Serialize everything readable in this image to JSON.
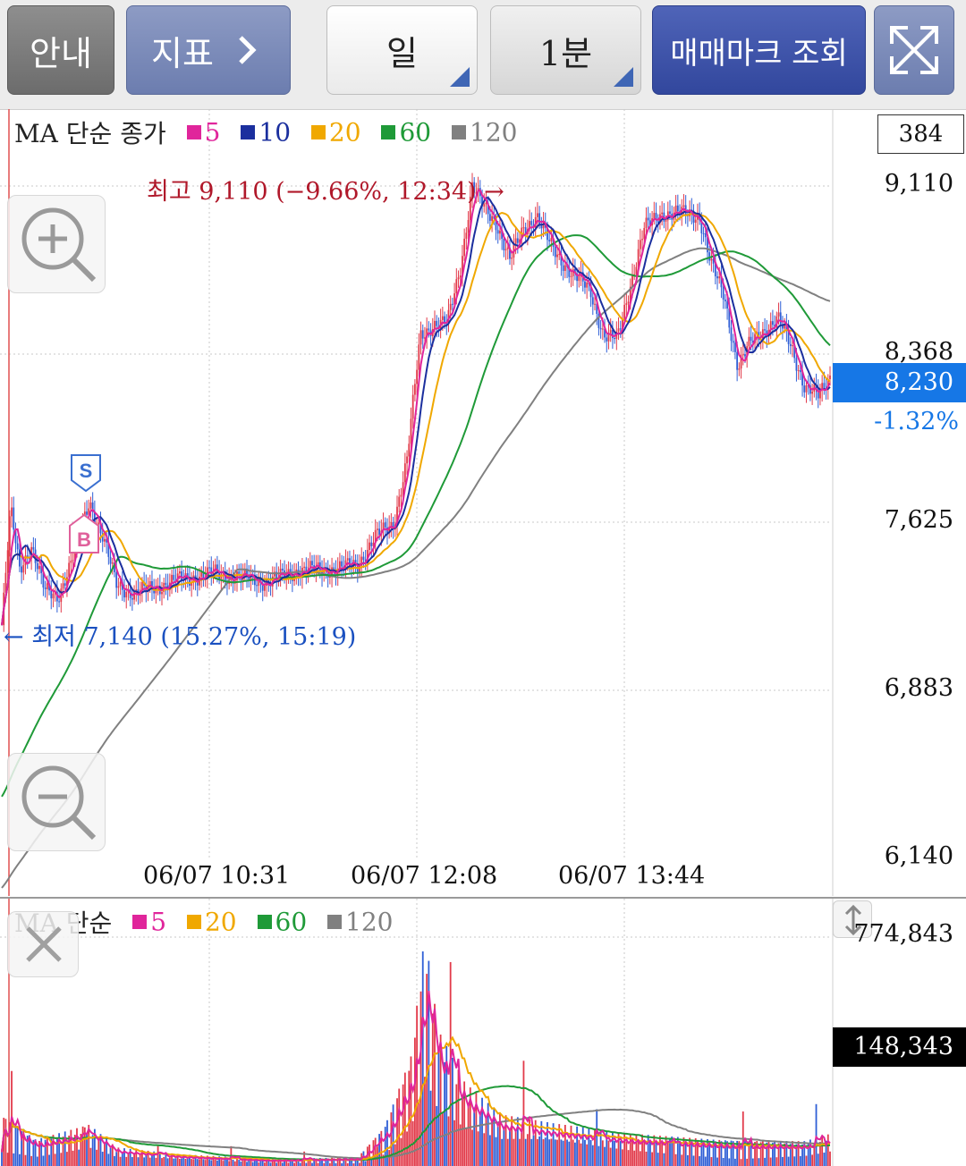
{
  "toolbar": {
    "guide_label": "안내",
    "indicator_label": "지표",
    "period_label": "일",
    "interval_label": "1분",
    "trade_mark_label": "매매마크 조회",
    "expand_icon": "expand-arrows-icon"
  },
  "price_chart": {
    "legend_title": "MA 단순 종가",
    "ma": [
      {
        "period": "5",
        "color": "#e0259b"
      },
      {
        "period": "10",
        "color": "#1b2f9e"
      },
      {
        "period": "20",
        "color": "#f0a800"
      },
      {
        "period": "60",
        "color": "#1f9a38"
      },
      {
        "period": "120",
        "color": "#808080"
      }
    ],
    "count_box": "384",
    "y_labels": [
      "9,110",
      "8,368",
      "7,625",
      "6,883",
      "6,140"
    ],
    "current_price": "8,230",
    "change_pct": "-1.32%",
    "high_annotation": "최고 9,110 (−9.66%, 12:34) →",
    "low_annotation": "← 최저 7,140 (15.27%, 15:19)",
    "x_labels": [
      "06/07 10:31",
      "06/07 12:08",
      "06/07 13:44"
    ],
    "sell_mark": "S",
    "buy_mark": "B",
    "zoom_in_icon": "zoom-in-icon",
    "zoom_out_icon": "zoom-out-icon"
  },
  "volume_chart": {
    "legend_title": "MA 단순",
    "ma": [
      {
        "period": "5",
        "color": "#e0259b"
      },
      {
        "period": "20",
        "color": "#f0a800"
      },
      {
        "period": "60",
        "color": "#1f9a38"
      },
      {
        "period": "120",
        "color": "#808080"
      }
    ],
    "y_labels": [
      "774,843"
    ],
    "current_volume": "148,343",
    "close_icon": "close-icon",
    "resize_icon": "vertical-resize-icon"
  },
  "chart_data": {
    "type": "line",
    "x": [
      "06/07 10:31",
      "06/07 12:08",
      "06/07 13:44"
    ],
    "yticks": [
      9110,
      8368,
      7625,
      6883,
      6140
    ],
    "ylim": [
      6140,
      9110
    ],
    "high": 9110,
    "low": 7140,
    "last": 8230,
    "volume_max_tick": 774843,
    "volume_last": 148343
  }
}
